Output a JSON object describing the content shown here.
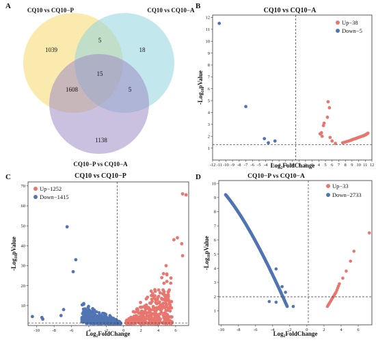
{
  "figure": {
    "panel_letters": {
      "a": "A",
      "b": "B",
      "c": "C",
      "d": "D"
    }
  },
  "colors": {
    "up": "#E8766E",
    "down": "#5175B3",
    "venn_p": "#F6D86B",
    "venn_a": "#8FD4DE",
    "venn_pa": "#9F8DC5"
  },
  "chart_data": [
    {
      "panel": "A",
      "type": "venn",
      "sets": [
        {
          "name": "CQ10 vs CQ10−P",
          "color": "#F6D86B"
        },
        {
          "name": "CQ10 vs CQ10−A",
          "color": "#8FD4DE"
        },
        {
          "name": "CQ10−P vs CQ10−A",
          "color": "#9F8DC5"
        }
      ],
      "regions": {
        "p_only": 1039,
        "a_only": 18,
        "pa_only": 1138,
        "p_and_a": 5,
        "p_and_pa": 1608,
        "a_and_pa": 5,
        "all_three": 15
      }
    },
    {
      "panel": "B",
      "type": "scatter",
      "title": "CQ10 vs CQ10−A",
      "xlabel": "Log₂FoldChange",
      "ylabel": "-Log₁₀pValue",
      "xlim": [
        -12,
        12
      ],
      "ylim": [
        0,
        12.2
      ],
      "xticks": [
        -12,
        -11,
        -10,
        -9,
        -8,
        -7,
        -6,
        -5,
        -4,
        -3,
        -2,
        -1,
        0,
        1,
        2,
        3,
        4,
        5,
        6,
        7,
        8,
        9,
        10,
        11,
        12
      ],
      "yticks": [
        1,
        2,
        3,
        4,
        5,
        6,
        7,
        8,
        9,
        10,
        11,
        12
      ],
      "threshold_x": 0,
      "threshold_y": 1.3,
      "legend": {
        "position": "top-right",
        "entries": [
          "Up−38",
          "Down−5"
        ]
      },
      "series": [
        {
          "name": "Up−38",
          "color": "#E8766E",
          "points": [
            [
              5.4,
              4.9
            ],
            [
              5.6,
              4.4
            ],
            [
              5.3,
              3.6
            ],
            [
              4.8,
              3.1
            ],
            [
              4.7,
              2.9
            ],
            [
              4.4,
              2.3
            ],
            [
              4.5,
              2.0
            ],
            [
              4.2,
              2.2
            ],
            [
              5.7,
              1.9
            ],
            [
              6.0,
              1.6
            ],
            [
              6.5,
              1.4
            ],
            [
              7.6,
              1.45
            ],
            [
              7.9,
              1.5
            ],
            [
              8.2,
              1.55
            ],
            [
              8.5,
              1.6
            ],
            [
              8.8,
              1.65
            ],
            [
              9.0,
              1.7
            ],
            [
              9.2,
              1.75
            ],
            [
              9.4,
              1.78
            ],
            [
              9.6,
              1.82
            ],
            [
              9.8,
              1.86
            ],
            [
              10.0,
              1.9
            ],
            [
              10.2,
              1.94
            ],
            [
              10.4,
              1.98
            ],
            [
              10.6,
              2.02
            ],
            [
              10.8,
              2.06
            ],
            [
              10.95,
              2.1
            ],
            [
              11.1,
              2.14
            ],
            [
              11.2,
              2.18
            ],
            [
              11.3,
              2.22
            ],
            [
              11.4,
              2.26
            ]
          ]
        },
        {
          "name": "Down−5",
          "color": "#5175B3",
          "points": [
            [
              -11.0,
              11.5
            ],
            [
              -7.0,
              4.5
            ],
            [
              -4.2,
              1.8
            ],
            [
              -3.6,
              1.45
            ],
            [
              -2.6,
              1.6
            ]
          ]
        }
      ]
    },
    {
      "panel": "C",
      "type": "scatter",
      "title": "CQ10 vs CQ10−P",
      "xlabel": "Log₂FoldChange",
      "ylabel": "-Log₁₀pValue",
      "xlim": [
        -11,
        7.5
      ],
      "ylim": [
        0,
        72
      ],
      "xticks": [
        -10,
        -8,
        -6,
        -4,
        -2,
        0,
        2,
        4,
        6
      ],
      "yticks": [
        10,
        20,
        30,
        40,
        50,
        60,
        70
      ],
      "threshold_x": 0,
      "threshold_y": 1.3,
      "legend": {
        "position": "top-left",
        "entries": [
          "Up−1252",
          "Down−1415"
        ]
      },
      "series": [
        {
          "name": "Up−1252",
          "color": "#E8766E",
          "points": [
            [
              6.8,
              66
            ],
            [
              7.2,
              65.5
            ],
            [
              6.2,
              44
            ],
            [
              6.7,
              41
            ],
            [
              6.8,
              35
            ],
            [
              5.8,
              43
            ],
            [
              4.9,
              30
            ],
            [
              4.4,
              24
            ],
            [
              4.6,
              26
            ]
          ]
        },
        {
          "name": "Down−1415",
          "color": "#5175B3",
          "points": [
            [
              -6.5,
              49.5
            ],
            [
              -5.5,
              33
            ],
            [
              -5.8,
              27
            ],
            [
              -10.5,
              4.5
            ],
            [
              -9.4,
              4.0
            ],
            [
              -9.3,
              3.2
            ],
            [
              -7.2,
              5
            ],
            [
              -6.9,
              8
            ]
          ]
        }
      ],
      "clusters": [
        {
          "series": "Up−1252",
          "x": [
            0.3,
            5.6
          ],
          "y_max_slope": 5.5,
          "y_base": 1,
          "count": 380
        },
        {
          "series": "Down−1415",
          "x": [
            -4.8,
            -0.3
          ],
          "y_max_slope": 2.6,
          "y_base": 1,
          "count": 380
        }
      ]
    },
    {
      "panel": "D",
      "type": "scatter",
      "title": "CQ10−P vs CQ10−A",
      "xlabel": "Log₂FoldChange",
      "ylabel": "-Log₁₀pValue",
      "xlim": [
        -10.3,
        7.6
      ],
      "ylim": [
        0,
        10.2
      ],
      "xticks": [
        -10,
        -8,
        -6,
        -4,
        -2,
        0,
        2,
        4,
        6
      ],
      "yticks": [
        1,
        2,
        3,
        4,
        5,
        6,
        7,
        8,
        9,
        10
      ],
      "threshold_x": 0,
      "threshold_y": 1.3,
      "legend": {
        "position": "top-right",
        "entries": [
          "Up−33",
          "Down−2733"
        ]
      },
      "series": [
        {
          "name": "Up−33",
          "color": "#E8766E",
          "points": [
            [
              2.4,
              1.3
            ],
            [
              2.5,
              1.4
            ],
            [
              2.6,
              1.5
            ],
            [
              2.7,
              1.6
            ],
            [
              2.8,
              1.7
            ],
            [
              2.9,
              1.8
            ],
            [
              3.0,
              1.9
            ],
            [
              3.1,
              2.0
            ],
            [
              3.2,
              2.1
            ],
            [
              3.3,
              2.2
            ],
            [
              3.4,
              2.3
            ],
            [
              3.5,
              2.45
            ],
            [
              3.6,
              2.6
            ],
            [
              3.7,
              2.75
            ],
            [
              3.8,
              2.9
            ],
            [
              4.2,
              3.3
            ],
            [
              4.6,
              3.8
            ],
            [
              5.1,
              4.5
            ],
            [
              5.5,
              5.2
            ],
            [
              7.3,
              6.5
            ]
          ]
        },
        {
          "name": "Down−2733",
          "color": "#5175B3",
          "points": [
            [
              -3.6,
              3.95
            ],
            [
              -3.6,
              1.6
            ],
            [
              -2.9,
              2.7
            ],
            [
              -2.5,
              2.3
            ],
            [
              -1.6,
              1.3
            ],
            [
              -4.4,
              1.65
            ]
          ]
        }
      ],
      "curve": {
        "series": "Down−2733",
        "from": [
          -9.5,
          9.2
        ],
        "mid": [
          -6.5,
          7.0
        ],
        "to": [
          -2.3,
          1.3
        ]
      }
    }
  ]
}
